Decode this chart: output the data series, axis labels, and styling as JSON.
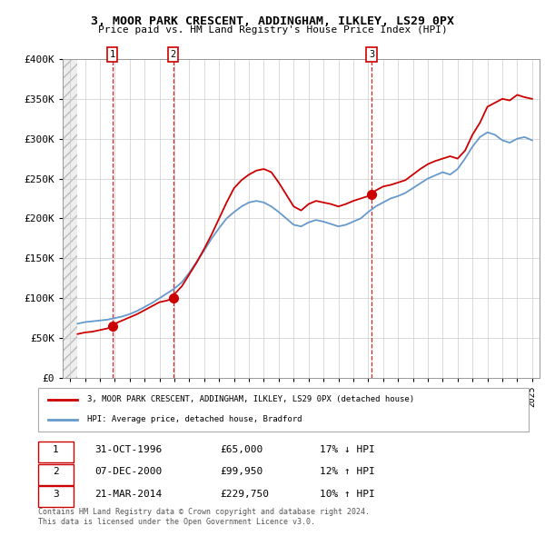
{
  "title": "3, MOOR PARK CRESCENT, ADDINGHAM, ILKLEY, LS29 0PX",
  "subtitle": "Price paid vs. HM Land Registry's House Price Index (HPI)",
  "ylim": [
    0,
    400000
  ],
  "yticks": [
    0,
    50000,
    100000,
    150000,
    200000,
    250000,
    300000,
    350000,
    400000
  ],
  "ytick_labels": [
    "£0",
    "£50K",
    "£100K",
    "£150K",
    "£200K",
    "£250K",
    "£300K",
    "£350K",
    "£400K"
  ],
  "xlim_start": 1993.5,
  "xlim_end": 2025.5,
  "background_hatch_end": 1994.5,
  "sale_dates": [
    1996.833,
    2000.917,
    2014.222
  ],
  "sale_prices": [
    65000,
    99950,
    229750
  ],
  "sale_labels": [
    "1",
    "2",
    "3"
  ],
  "red_line_color": "#cc0000",
  "blue_line_color": "#6699cc",
  "marker_color": "#cc0000",
  "dashed_line_color": "#cc0000",
  "grid_color": "#cccccc",
  "legend_label_red": "3, MOOR PARK CRESCENT, ADDINGHAM, ILKLEY, LS29 0PX (detached house)",
  "legend_label_blue": "HPI: Average price, detached house, Bradford",
  "table_rows": [
    [
      "1",
      "31-OCT-1996",
      "£65,000",
      "17% ↓ HPI"
    ],
    [
      "2",
      "07-DEC-2000",
      "£99,950",
      "12% ↑ HPI"
    ],
    [
      "3",
      "21-MAR-2014",
      "£229,750",
      "10% ↑ HPI"
    ]
  ],
  "footnote1": "Contains HM Land Registry data © Crown copyright and database right 2024.",
  "footnote2": "This data is licensed under the Open Government Licence v3.0.",
  "red_line_x": [
    1994.5,
    1995,
    1995.5,
    1996,
    1996.5,
    1996.833,
    1997,
    1997.5,
    1998,
    1998.5,
    1999,
    1999.5,
    2000,
    2000.5,
    2000.917,
    2001,
    2001.5,
    2002,
    2002.5,
    2003,
    2003.5,
    2004,
    2004.5,
    2005,
    2005.5,
    2006,
    2006.5,
    2007,
    2007.5,
    2008,
    2008.5,
    2009,
    2009.5,
    2010,
    2010.5,
    2011,
    2011.5,
    2012,
    2012.5,
    2013,
    2013.5,
    2014,
    2014.222,
    2014.5,
    2015,
    2015.5,
    2016,
    2016.5,
    2017,
    2017.5,
    2018,
    2018.5,
    2019,
    2019.5,
    2020,
    2020.5,
    2021,
    2021.5,
    2022,
    2022.5,
    2023,
    2023.5,
    2024,
    2024.5,
    2025
  ],
  "red_line_y": [
    55000,
    57000,
    58000,
    60000,
    62000,
    65000,
    68000,
    72000,
    76000,
    80000,
    85000,
    90000,
    95000,
    97000,
    99950,
    105000,
    115000,
    130000,
    145000,
    162000,
    180000,
    200000,
    220000,
    238000,
    248000,
    255000,
    260000,
    262000,
    258000,
    245000,
    230000,
    215000,
    210000,
    218000,
    222000,
    220000,
    218000,
    215000,
    218000,
    222000,
    225000,
    228000,
    229750,
    235000,
    240000,
    242000,
    245000,
    248000,
    255000,
    262000,
    268000,
    272000,
    275000,
    278000,
    275000,
    285000,
    305000,
    320000,
    340000,
    345000,
    350000,
    348000,
    355000,
    352000,
    350000
  ],
  "blue_line_x": [
    1994.5,
    1995,
    1995.5,
    1996,
    1996.5,
    1997,
    1997.5,
    1998,
    1998.5,
    1999,
    1999.5,
    2000,
    2000.5,
    2001,
    2001.5,
    2002,
    2002.5,
    2003,
    2003.5,
    2004,
    2004.5,
    2005,
    2005.5,
    2006,
    2006.5,
    2007,
    2007.5,
    2008,
    2008.5,
    2009,
    2009.5,
    2010,
    2010.5,
    2011,
    2011.5,
    2012,
    2012.5,
    2013,
    2013.5,
    2014,
    2014.5,
    2015,
    2015.5,
    2016,
    2016.5,
    2017,
    2017.5,
    2018,
    2018.5,
    2019,
    2019.5,
    2020,
    2020.5,
    2021,
    2021.5,
    2022,
    2022.5,
    2023,
    2023.5,
    2024,
    2024.5,
    2025
  ],
  "blue_line_y": [
    68000,
    70000,
    71000,
    72000,
    73000,
    75000,
    77000,
    80000,
    84000,
    89000,
    94000,
    100000,
    106000,
    112000,
    120000,
    132000,
    146000,
    160000,
    175000,
    188000,
    200000,
    208000,
    215000,
    220000,
    222000,
    220000,
    215000,
    208000,
    200000,
    192000,
    190000,
    195000,
    198000,
    196000,
    193000,
    190000,
    192000,
    196000,
    200000,
    208000,
    215000,
    220000,
    225000,
    228000,
    232000,
    238000,
    244000,
    250000,
    254000,
    258000,
    255000,
    262000,
    275000,
    290000,
    302000,
    308000,
    305000,
    298000,
    295000,
    300000,
    302000,
    298000
  ]
}
